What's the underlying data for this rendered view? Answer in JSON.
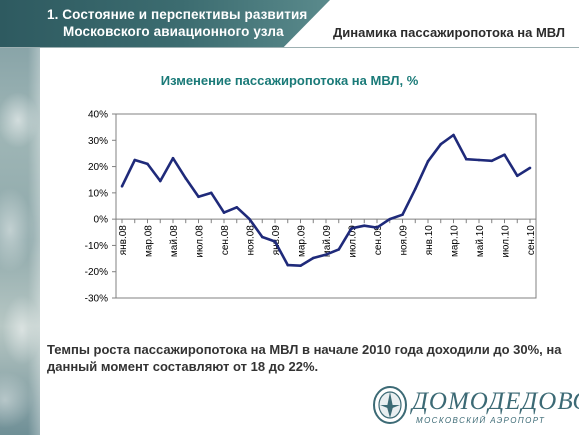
{
  "header": {
    "title_line1": "1. Состояние и перспективы развития",
    "title_line2": "Московского авиационного узла",
    "section": "Динамика пассажиропотока на МВЛ"
  },
  "chart_data": {
    "type": "line",
    "title": "Изменение пассажиропотока на МВЛ, %",
    "xlabel": "",
    "ylabel": "",
    "y_ticks": [
      "40%",
      "30%",
      "20%",
      "10%",
      "0%",
      "-10%",
      "-20%",
      "-30%"
    ],
    "ylim": [
      -30,
      40
    ],
    "grid": false,
    "x_tick_labels": [
      {
        "index": 0,
        "label": "янв.08"
      },
      {
        "index": 2,
        "label": "мар.08"
      },
      {
        "index": 4,
        "label": "май.08"
      },
      {
        "index": 6,
        "label": "июл.08"
      },
      {
        "index": 8,
        "label": "сен.08"
      },
      {
        "index": 10,
        "label": "ноя.08"
      },
      {
        "index": 12,
        "label": "янв.09"
      },
      {
        "index": 14,
        "label": "мар.09"
      },
      {
        "index": 16,
        "label": "май.09"
      },
      {
        "index": 18,
        "label": "июл.09"
      },
      {
        "index": 20,
        "label": "сен.09"
      },
      {
        "index": 22,
        "label": "ноя.09"
      },
      {
        "index": 24,
        "label": "янв.10"
      },
      {
        "index": 26,
        "label": "мар.10"
      },
      {
        "index": 28,
        "label": "май.10"
      },
      {
        "index": 30,
        "label": "июл.10"
      },
      {
        "index": 32,
        "label": "сен.10"
      }
    ],
    "series": [
      {
        "name": "",
        "color": "#1f2a7a",
        "values": [
          12.5,
          22.5,
          21,
          14.5,
          23.2,
          15.5,
          8.5,
          10,
          2.5,
          4.5,
          0,
          -6.8,
          -8.5,
          -17.5,
          -17.7,
          -14.8,
          -13.5,
          -11.5,
          -3.5,
          -2.5,
          -3.2,
          0,
          1.7,
          11.5,
          22,
          28.5,
          32,
          22.8,
          22.5,
          22.2,
          24.5,
          16.5,
          19.5
        ]
      }
    ]
  },
  "description": "Темпы роста пассажиропотока на МВЛ в начале 2010 года доходили до 30%,  на данный момент составляют от 18 до 22%.",
  "logo": {
    "name": "ДОМОДЕДОВО",
    "subtitle": "МОСКОВСКИЙ АЭРОПОРТ"
  }
}
